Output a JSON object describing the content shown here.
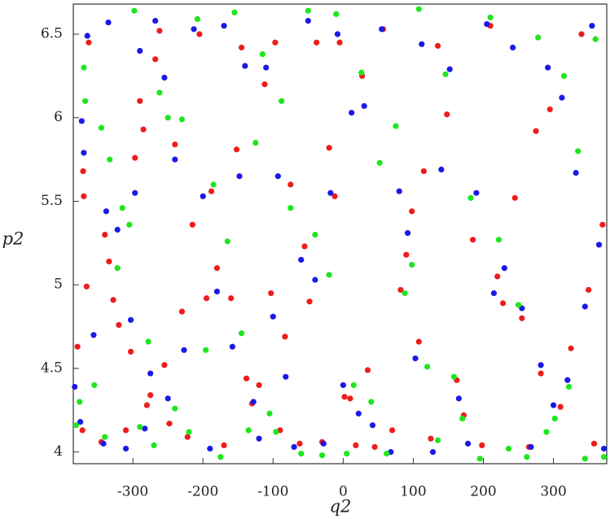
{
  "chart_data": {
    "type": "scatter",
    "x_label": "q2",
    "y_label": "p2",
    "xlim": [
      -385,
      376
    ],
    "ylim": [
      3.93,
      6.68
    ],
    "xticks": [
      -300,
      -200,
      -100,
      0,
      100,
      200,
      300
    ],
    "yticks": [
      4,
      4.5,
      5,
      5.5,
      6,
      6.5
    ],
    "series": [
      {
        "color": "#ee1c1c",
        "x": [
          -379,
          -372,
          -366,
          -370,
          -371,
          -363,
          -345,
          -340,
          -334,
          -328,
          -320,
          -310,
          -303,
          -297,
          -290,
          -285,
          -280,
          -275,
          -268,
          -262,
          -255,
          -248,
          -240,
          -230,
          -222,
          -215,
          -205,
          -195,
          -188,
          -180,
          -170,
          -160,
          -152,
          -145,
          -138,
          -130,
          -120,
          -112,
          -103,
          -97,
          -90,
          -83,
          -75,
          -62,
          -55,
          -48,
          -38,
          -30,
          -20,
          -12,
          -5,
          2,
          10,
          18,
          27,
          35,
          45,
          57,
          70,
          82,
          90,
          98,
          108,
          115,
          125,
          135,
          148,
          162,
          172,
          185,
          198,
          210,
          220,
          228,
          245,
          255,
          265,
          275,
          282,
          295,
          310,
          325,
          340,
          350,
          358,
          370
        ],
        "values": [
          4.63,
          4.13,
          4.99,
          5.53,
          5.68,
          6.45,
          4.06,
          5.3,
          5.14,
          4.91,
          4.76,
          4.13,
          4.6,
          5.76,
          6.1,
          5.93,
          4.28,
          4.34,
          6.35,
          6.52,
          4.52,
          4.17,
          5.84,
          4.84,
          4.09,
          5.36,
          6.5,
          4.92,
          5.56,
          5.1,
          4.04,
          4.92,
          5.81,
          6.42,
          4.44,
          4.29,
          4.4,
          6.2,
          4.95,
          6.45,
          4.13,
          4.69,
          5.6,
          4.05,
          5.23,
          4.9,
          6.45,
          4.06,
          5.82,
          5.53,
          6.45,
          4.33,
          4.32,
          4.04,
          6.25,
          4.49,
          4.03,
          6.53,
          4.13,
          4.97,
          5.18,
          5.44,
          4.66,
          5.68,
          4.08,
          6.43,
          6.02,
          4.43,
          4.22,
          5.27,
          4.04,
          6.55,
          5.05,
          4.89,
          5.52,
          4.8,
          4.03,
          5.92,
          4.47,
          6.05,
          4.27,
          4.62,
          6.5,
          4.97,
          4.05,
          5.36
        ]
      },
      {
        "color": "#1a1ae6",
        "x": [
          -383,
          -375,
          -373,
          -370,
          -365,
          -356,
          -342,
          -338,
          -335,
          -322,
          -310,
          -303,
          -297,
          -290,
          -283,
          -275,
          -268,
          -255,
          -250,
          -240,
          -227,
          -213,
          -200,
          -190,
          -180,
          -170,
          -158,
          -148,
          -140,
          -128,
          -120,
          -110,
          -100,
          -93,
          -82,
          -70,
          -60,
          -50,
          -40,
          -28,
          -18,
          -8,
          0,
          12,
          22,
          30,
          42,
          55,
          68,
          80,
          92,
          103,
          112,
          128,
          140,
          152,
          165,
          178,
          190,
          205,
          215,
          230,
          242,
          255,
          268,
          282,
          292,
          300,
          312,
          320,
          332,
          345,
          355,
          365,
          372
        ],
        "values": [
          4.39,
          4.18,
          5.98,
          5.79,
          6.49,
          4.7,
          4.05,
          5.44,
          6.57,
          5.33,
          4.02,
          4.79,
          5.55,
          6.4,
          4.14,
          4.47,
          6.58,
          6.24,
          4.32,
          5.75,
          4.61,
          6.53,
          5.53,
          4.02,
          4.96,
          6.55,
          4.63,
          5.65,
          6.31,
          4.3,
          4.08,
          6.3,
          4.81,
          5.65,
          4.45,
          4.03,
          5.15,
          6.58,
          5.03,
          4.05,
          5.55,
          6.5,
          4.4,
          6.03,
          4.23,
          6.07,
          4.16,
          6.53,
          4.0,
          5.56,
          5.31,
          4.56,
          6.44,
          4.0,
          5.69,
          6.29,
          4.32,
          4.05,
          5.55,
          6.56,
          4.95,
          5.1,
          6.42,
          4.86,
          4.03,
          4.52,
          6.3,
          4.28,
          6.12,
          4.43,
          5.67,
          4.87,
          6.55,
          5.24,
          4.02
        ]
      },
      {
        "color": "#1ee61e",
        "x": [
          -381,
          -376,
          -370,
          -368,
          -355,
          -345,
          -340,
          -333,
          -322,
          -315,
          -305,
          -298,
          -290,
          -278,
          -270,
          -262,
          -250,
          -240,
          -230,
          -220,
          -208,
          -196,
          -185,
          -175,
          -165,
          -155,
          -145,
          -135,
          -125,
          -115,
          -105,
          -96,
          -88,
          -75,
          -60,
          -50,
          -40,
          -30,
          -20,
          -10,
          5,
          15,
          26,
          40,
          52,
          62,
          75,
          88,
          98,
          108,
          120,
          135,
          146,
          158,
          170,
          182,
          195,
          210,
          222,
          236,
          250,
          262,
          278,
          290,
          302,
          315,
          322,
          335,
          345,
          360,
          372
        ],
        "values": [
          4.16,
          4.3,
          6.3,
          6.1,
          4.4,
          5.94,
          4.09,
          5.75,
          5.1,
          5.46,
          5.36,
          6.64,
          4.15,
          4.66,
          4.04,
          6.15,
          6.0,
          4.26,
          5.99,
          4.12,
          6.59,
          4.61,
          5.6,
          3.97,
          5.26,
          6.63,
          4.71,
          4.13,
          5.85,
          6.38,
          4.23,
          4.12,
          6.1,
          5.46,
          3.99,
          6.64,
          5.3,
          3.98,
          5.06,
          6.62,
          3.99,
          4.4,
          6.27,
          4.3,
          5.73,
          3.99,
          5.95,
          4.95,
          5.12,
          6.65,
          4.51,
          4.07,
          6.26,
          4.45,
          4.2,
          5.52,
          3.96,
          6.6,
          5.27,
          4.02,
          4.88,
          3.97,
          6.48,
          4.12,
          4.2,
          6.25,
          4.39,
          5.8,
          3.96,
          6.47,
          3.97
        ]
      }
    ]
  }
}
